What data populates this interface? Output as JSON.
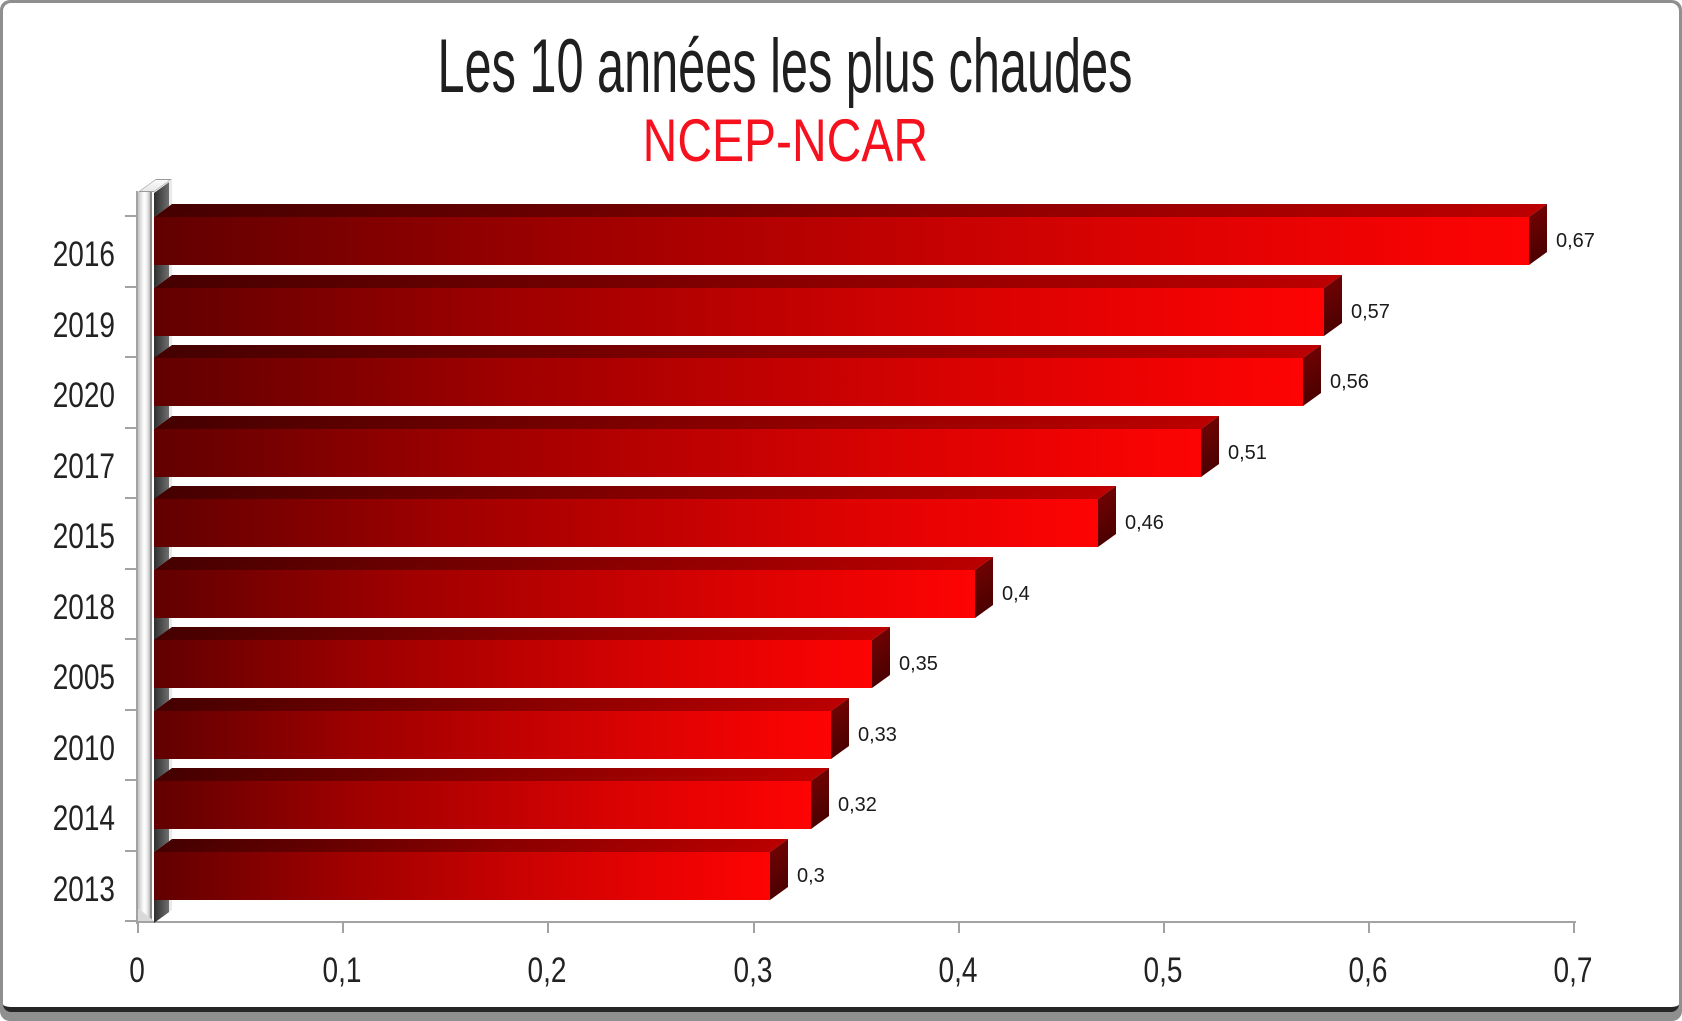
{
  "header": {
    "title": "Les 10 années les plus chaudes",
    "subtitle": "NCEP-NCAR"
  },
  "colors": {
    "subtitle_red": "#f5111e",
    "bar_front_bright": "#fe0303",
    "bar_front_dark": "#610000",
    "bar_top_face": "#8a0000",
    "bar_side_face": "#4d0000",
    "axis_gray": "#a3a3a3",
    "shadow_gray": "#3d3d3d",
    "frame_gray": "#8f8f8f",
    "title_black": "#1f1f1f"
  },
  "chart_data": {
    "type": "bar",
    "orientation": "horizontal",
    "title": "Les 10 années les plus chaudes",
    "subtitle": "NCEP-NCAR",
    "categories": [
      "2016",
      "2019",
      "2020",
      "2017",
      "2015",
      "2018",
      "2005",
      "2010",
      "2014",
      "2013"
    ],
    "values": [
      0.67,
      0.57,
      0.56,
      0.51,
      0.46,
      0.4,
      0.35,
      0.33,
      0.32,
      0.3
    ],
    "value_labels": [
      "0,67",
      "0,57",
      "0,56",
      "0,51",
      "0,46",
      "0,4",
      "0,35",
      "0,33",
      "0,32",
      "0,3"
    ],
    "x_tick_labels": [
      "0",
      "0,1",
      "0,2",
      "0,3",
      "0,4",
      "0,5",
      "0,6",
      "0,7"
    ],
    "xlim": [
      0,
      0.7
    ],
    "xlabel": "",
    "ylabel": "",
    "decimal_separator": ",",
    "grid": false,
    "legend": false,
    "style": "3d-box-bars-red",
    "bars_sorted": "descending"
  }
}
